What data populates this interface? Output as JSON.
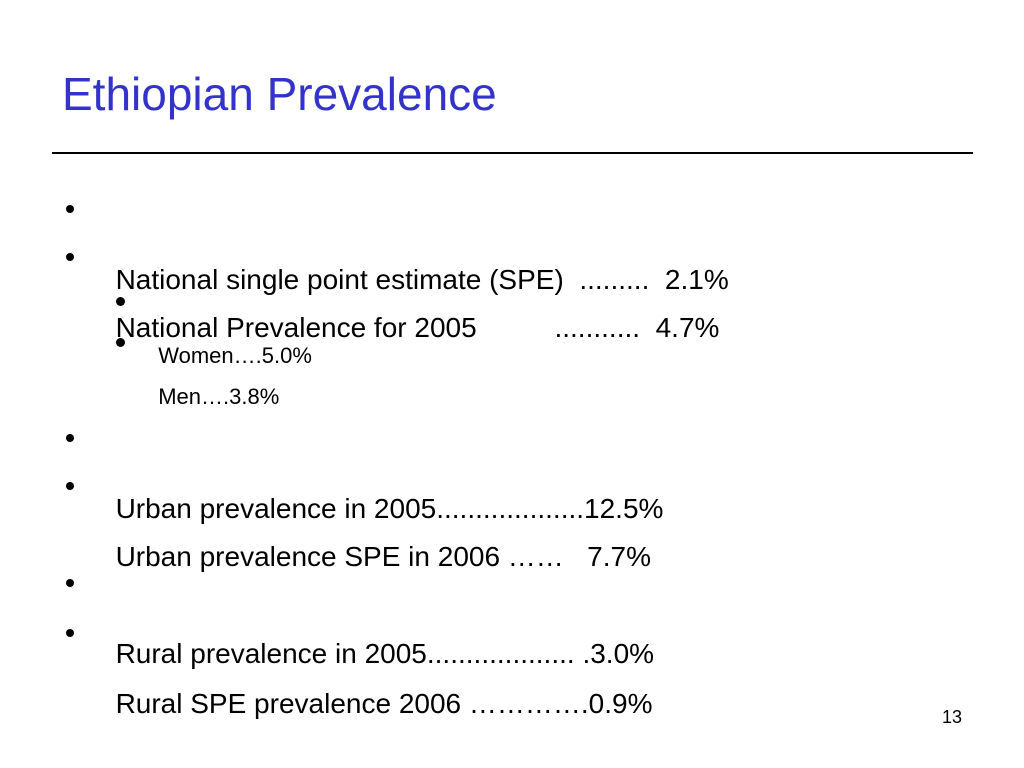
{
  "slide": {
    "title": "Ethiopian Prevalence",
    "page_number": "13"
  },
  "bullets": [
    {
      "text": "National single point estimate (SPE)  .........  2.1%"
    },
    {
      "text": "National Prevalence for 2005          ...........  4.7%"
    },
    {
      "text": "Women….5.0%"
    },
    {
      "text": "Men….3.8%"
    },
    {
      "text": "Urban prevalence in 2005...................12.5%"
    },
    {
      "text": "Urban prevalence SPE in 2006 ……   7.7%"
    },
    {
      "text": "Rural prevalence in 2005................... .3.0%"
    },
    {
      "text": "Rural SPE prevalence 2006 ………….0.9%"
    }
  ]
}
